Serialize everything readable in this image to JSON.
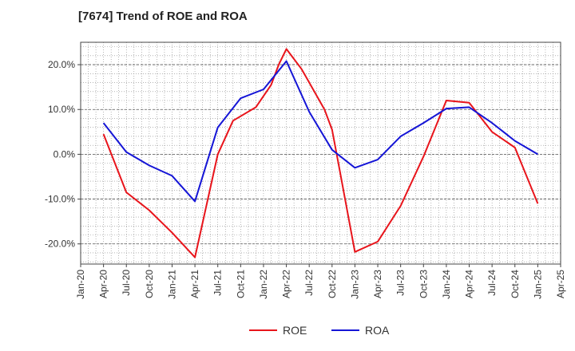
{
  "chart_data": {
    "type": "line",
    "title": "[7674]  Trend of ROE and ROA",
    "xlabel": "",
    "ylabel": "",
    "x_ticks": [
      "Jan-20",
      "Apr-20",
      "Jul-20",
      "Oct-20",
      "Jan-21",
      "Apr-21",
      "Jul-21",
      "Oct-21",
      "Jan-22",
      "Apr-22",
      "Jul-22",
      "Oct-22",
      "Jan-23",
      "Apr-23",
      "Jul-23",
      "Oct-23",
      "Jan-24",
      "Apr-24",
      "Jul-24",
      "Oct-24",
      "Jan-25",
      "Apr-25"
    ],
    "y_ticks": [
      {
        "value": 20,
        "label": "20.0%"
      },
      {
        "value": 10,
        "label": "10.0%"
      },
      {
        "value": 0,
        "label": "0.0%"
      },
      {
        "value": -10,
        "label": "-10.0%"
      },
      {
        "value": -20,
        "label": "-20.0%"
      }
    ],
    "ylim": [
      -24.5,
      25
    ],
    "grid": true,
    "legend_position": "bottom-center",
    "x": [
      "Apr-20",
      "Jun-20",
      "Sep-20",
      "Dec-20",
      "Mar-21",
      "Apr-21",
      "Jun-21",
      "Sep-21",
      "Dec-21",
      "Mar-22",
      "Apr-22",
      "Jun-22",
      "Sep-22",
      "Oct-22",
      "Dec-22",
      "Mar-23",
      "Jun-23",
      "Sep-23",
      "Dec-23",
      "Mar-24",
      "Jun-24",
      "Sep-24",
      "Dec-24",
      "Jan-25"
    ],
    "series": [
      {
        "name": "ROE",
        "color": "#e8141b",
        "x": [
          "Apr-20",
          "Jul-20",
          "Oct-20",
          "Jan-21",
          "Apr-21",
          "Jul-21",
          "Sep-21",
          "Dec-21",
          "Feb-22",
          "Mar-22",
          "Apr-22",
          "Jun-22",
          "Sep-22",
          "Oct-22",
          "Nov-22",
          "Jan-23",
          "Apr-23",
          "Jul-23",
          "Oct-23",
          "Jan-24",
          "Apr-24",
          "Jul-24",
          "Oct-24",
          "Jan-25"
        ],
        "values": [
          4.5,
          -8.5,
          -12.5,
          -17.5,
          -23.0,
          0.0,
          7.5,
          10.5,
          15.5,
          20.0,
          23.5,
          19.0,
          10.0,
          5.5,
          -3.5,
          -21.8,
          -19.5,
          -11.5,
          -0.5,
          12.0,
          11.5,
          5.0,
          1.5,
          -11.0
        ]
      },
      {
        "name": "ROA",
        "color": "#1515d6",
        "x": [
          "Apr-20",
          "Jul-20",
          "Oct-20",
          "Jan-21",
          "Apr-21",
          "Jul-21",
          "Oct-21",
          "Jan-22",
          "Apr-22",
          "Jul-22",
          "Oct-22",
          "Jan-23",
          "Apr-23",
          "Jul-23",
          "Oct-23",
          "Jan-24",
          "Apr-24",
          "Jul-24",
          "Oct-24",
          "Jan-25"
        ],
        "values": [
          7.0,
          0.5,
          -2.5,
          -4.8,
          -10.5,
          6.0,
          12.5,
          14.5,
          20.8,
          9.5,
          1.0,
          -3.0,
          -1.2,
          4.0,
          7.0,
          10.2,
          10.5,
          7.0,
          3.0,
          0.0
        ]
      }
    ]
  }
}
